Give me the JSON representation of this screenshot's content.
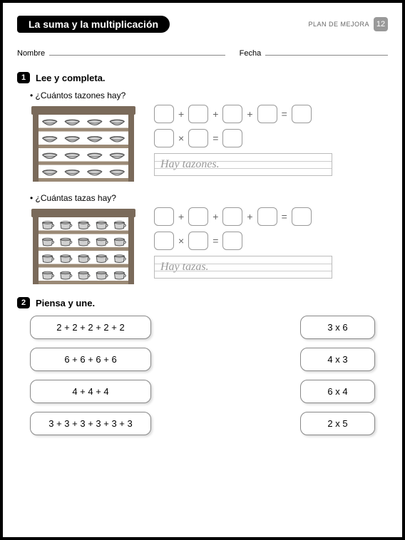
{
  "header": {
    "title": "La suma y la multiplicación",
    "plan_label": "PLAN DE MEJORA",
    "page_number": "12"
  },
  "form": {
    "name_label": "Nombre",
    "date_label": "Fecha"
  },
  "section1": {
    "number": "1",
    "title": "Lee y completa.",
    "q1": "• ¿Cuántos tazones hay?",
    "q2": "• ¿Cuántas tazas hay?",
    "answer1": "Hay        tazones.",
    "answer2": "Hay        tazas.",
    "shelf1": {
      "rows": 4,
      "cols": 4,
      "item": "bowl"
    },
    "shelf2": {
      "rows": 4,
      "cols": 5,
      "item": "cup"
    },
    "ops": {
      "plus": "+",
      "times": "×",
      "equals": "="
    }
  },
  "section2": {
    "number": "2",
    "title": "Piensa y une.",
    "pairs": [
      {
        "left": "2 + 2 + 2 + 2 + 2",
        "right": "3 x 6"
      },
      {
        "left": "6 + 6 + 6 + 6",
        "right": "4 x 3"
      },
      {
        "left": "4 + 4 + 4",
        "right": "6 x 4"
      },
      {
        "left": "3 + 3 + 3 + 3 + 3 + 3",
        "right": "2 x 5"
      }
    ]
  },
  "colors": {
    "shelf_frame": "#7a6a5a",
    "shelf_plank": "#9b8a76",
    "item_fill": "#d0d0d0",
    "item_stroke": "#555"
  }
}
